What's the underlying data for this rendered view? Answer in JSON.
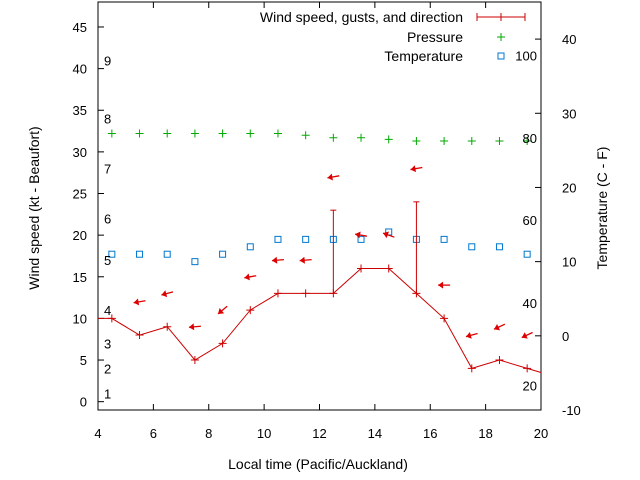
{
  "chart_data": {
    "type": "line",
    "xlabel": "Local time (Pacific/Auckland)",
    "ylabel_left": "Wind speed (kt - Beaufort)",
    "ylabel_right": "Temperature (C - F)",
    "x_range": [
      4,
      20
    ],
    "y_left_range": [
      -1,
      48
    ],
    "y_right_range": [
      -10,
      45
    ],
    "x_ticks": [
      4,
      6,
      8,
      10,
      12,
      14,
      16,
      18,
      20
    ],
    "y_left_ticks": [
      0,
      5,
      10,
      15,
      20,
      25,
      30,
      35,
      40,
      45
    ],
    "y_right_ticks": [
      -10,
      0,
      10,
      20,
      30,
      40
    ],
    "beaufort_labels": [
      {
        "label": "1",
        "kt": 1
      },
      {
        "label": "2",
        "kt": 4
      },
      {
        "label": "3",
        "kt": 7
      },
      {
        "label": "4",
        "kt": 11
      },
      {
        "label": "5",
        "kt": 17
      },
      {
        "label": "6",
        "kt": 22
      },
      {
        "label": "7",
        "kt": 28
      },
      {
        "label": "8",
        "kt": 34
      },
      {
        "label": "9",
        "kt": 41
      }
    ],
    "fahrenheit_labels": [
      {
        "label": "20",
        "c": -6.7
      },
      {
        "label": "40",
        "c": 4.4
      },
      {
        "label": "60",
        "c": 15.6
      },
      {
        "label": "80",
        "c": 26.7
      },
      {
        "label": "100",
        "c": 37.8
      }
    ],
    "legend": {
      "position": "top-right",
      "entries": [
        "Wind speed, gusts, and direction",
        "Pressure",
        "Temperature"
      ]
    },
    "colors": {
      "wind": "#cc0000",
      "pressure": "#00aa00",
      "temperature": "#0077cc",
      "arrow": "#dd0000"
    },
    "series": [
      {
        "name": "Wind speed, gusts, and direction",
        "axis": "left",
        "x": [
          4,
          4.5,
          5.5,
          6.5,
          7.5,
          8.5,
          9.5,
          10.5,
          11.5,
          12.5,
          13.5,
          14.5,
          15.5,
          16.5,
          17.5,
          18.5,
          19.5,
          20
        ],
        "y": [
          10,
          10,
          8,
          9,
          5,
          7,
          11,
          13,
          13,
          13,
          16,
          16,
          13,
          10,
          4,
          5,
          4,
          3.5
        ]
      },
      {
        "name": "Gusts",
        "axis": "left",
        "x": [
          12.5,
          15.5
        ],
        "y_low": [
          13,
          13
        ],
        "y_high": [
          23,
          24
        ]
      },
      {
        "name": "Pressure",
        "axis": "left",
        "x": [
          4.5,
          5.5,
          6.5,
          7.5,
          8.5,
          9.5,
          10.5,
          11.5,
          12.5,
          13.5,
          14.5,
          15.5,
          16.5,
          17.5,
          18.5,
          19.5
        ],
        "y": [
          32.2,
          32.2,
          32.2,
          32.2,
          32.2,
          32.2,
          32.2,
          32.0,
          31.7,
          31.7,
          31.5,
          31.3,
          31.3,
          31.3,
          31.3,
          31.3
        ]
      },
      {
        "name": "Temperature",
        "axis": "right",
        "x": [
          4.5,
          5.5,
          6.5,
          7.5,
          8.5,
          9.5,
          10.5,
          11.5,
          12.5,
          13.5,
          14.5,
          15.5,
          16.5,
          17.5,
          18.5,
          19.5
        ],
        "y": [
          11,
          11,
          11,
          10,
          11,
          12,
          13,
          13,
          13,
          13,
          14,
          13,
          13,
          12,
          12,
          11
        ]
      },
      {
        "name": "Wind direction",
        "axis": "left",
        "x": [
          5.5,
          6.5,
          7.5,
          8.5,
          9.5,
          10.5,
          11.5,
          12.5,
          13.5,
          14.5,
          15.5,
          16.5,
          17.5,
          18.5,
          19.5
        ],
        "y": [
          12,
          13,
          9,
          11,
          15,
          17,
          17,
          27,
          20,
          20,
          28,
          14,
          8,
          9,
          8
        ],
        "direction_deg": [
          80,
          75,
          85,
          50,
          80,
          85,
          85,
          80,
          100,
          110,
          80,
          90,
          75,
          65,
          65
        ]
      }
    ]
  }
}
